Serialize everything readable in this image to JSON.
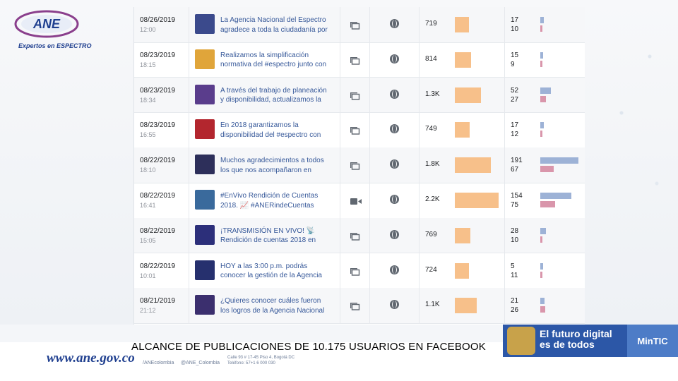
{
  "brand": {
    "logo_text": "ANE",
    "tagline": "Expertos en ESPECTRO",
    "website": "www.ane.gov.co",
    "social_facebook": "/ANEcolombia",
    "social_twitter": "@ANE_Colombia",
    "address_line1": "Calle 93 # 17-45 Piso 4, Bogotá DC",
    "address_line2": "Teléfono: 57+1 6 000 030",
    "mintic_slogan_line1": "El futuro digital",
    "mintic_slogan_line2": "es de todos",
    "mintic_brand": "MinTIC"
  },
  "caption": "ALCANCE DE  PUBLICACIONES DE 10.175 USUARIOS EN FACEBOOK",
  "posts": [
    {
      "date": "08/26/2019",
      "time": "12:00",
      "text1": "La Agencia Nacional del Espectro",
      "text2": "agradece a toda la ciudadanía por",
      "type": "photo",
      "reach": "719",
      "reach_value": 719,
      "clicks": "17",
      "reactions": "10",
      "clicks_value": 17,
      "reactions_value": 10,
      "thumb_color": "#3b4a8c"
    },
    {
      "date": "08/23/2019",
      "time": "18:15",
      "text1": "Realizamos la simplificación",
      "text2": "normativa del #espectro junto con",
      "type": "photo",
      "reach": "814",
      "reach_value": 814,
      "clicks": "15",
      "reactions": "9",
      "clicks_value": 15,
      "reactions_value": 9,
      "thumb_color": "#e0a53a"
    },
    {
      "date": "08/23/2019",
      "time": "18:34",
      "text1": "A través del trabajo de planeación",
      "text2": "y disponibilidad, actualizamos la",
      "type": "photo",
      "reach": "1.3K",
      "reach_value": 1300,
      "clicks": "52",
      "reactions": "27",
      "clicks_value": 52,
      "reactions_value": 27,
      "thumb_color": "#5a3d8c"
    },
    {
      "date": "08/23/2019",
      "time": "16:55",
      "text1": "En 2018 garantizamos la",
      "text2": "disponibilidad del #espectro con",
      "type": "photo",
      "reach": "749",
      "reach_value": 749,
      "clicks": "17",
      "reactions": "12",
      "clicks_value": 17,
      "reactions_value": 12,
      "thumb_color": "#b3262e"
    },
    {
      "date": "08/22/2019",
      "time": "18:10",
      "text1": "Muchos agradecimientos a todos",
      "text2": "los que nos acompañaron en",
      "type": "photo",
      "reach": "1.8K",
      "reach_value": 1800,
      "clicks": "191",
      "reactions": "67",
      "clicks_value": 191,
      "reactions_value": 67,
      "thumb_color": "#2d2f5a"
    },
    {
      "date": "08/22/2019",
      "time": "16:41",
      "text1": "#EnVivo Rendición de Cuentas",
      "text2": "2018. 📈 #ANERindeCuentas",
      "type": "video",
      "reach": "2.2K",
      "reach_value": 2200,
      "clicks": "154",
      "reactions": "75",
      "clicks_value": 154,
      "reactions_value": 75,
      "thumb_color": "#3a6a9c"
    },
    {
      "date": "08/22/2019",
      "time": "15:05",
      "text1": "¡TRANSMISIÓN EN VIVO! 📡",
      "text2": "Rendición de cuentas 2018 en",
      "type": "photo",
      "reach": "769",
      "reach_value": 769,
      "clicks": "28",
      "reactions": "10",
      "clicks_value": 28,
      "reactions_value": 10,
      "thumb_color": "#2c2f7a"
    },
    {
      "date": "08/22/2019",
      "time": "10:01",
      "text1": "HOY a las 3:00 p.m. podrás",
      "text2": "conocer la gestión de la Agencia",
      "type": "photo",
      "reach": "724",
      "reach_value": 724,
      "clicks": "5",
      "reactions": "11",
      "clicks_value": 5,
      "reactions_value": 11,
      "thumb_color": "#26306e"
    },
    {
      "date": "08/21/2019",
      "time": "21:12",
      "text1": "¿Quieres conocer cuáles fueron",
      "text2": "los logros de la Agencia Nacional",
      "type": "photo",
      "reach": "1.1K",
      "reach_value": 1100,
      "clicks": "21",
      "reactions": "26",
      "clicks_value": 21,
      "reactions_value": 26,
      "thumb_color": "#3b2f6e"
    }
  ],
  "colors": {
    "reach_bar": "#f7c08a",
    "clicks_bar": "#9db2d6",
    "reactions_bar": "#d996ab",
    "link_text": "#365899",
    "brand_blue": "#1f3f8f"
  },
  "icons": {
    "photo": "photo-post-icon",
    "video": "video-post-icon",
    "audience": "globe-icon"
  }
}
